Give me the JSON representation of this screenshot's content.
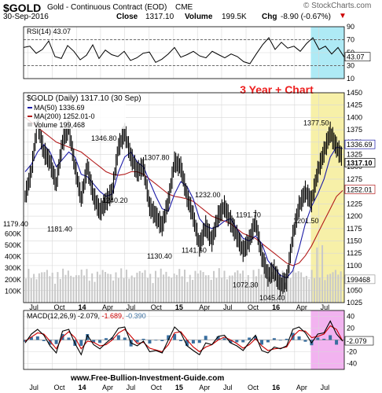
{
  "header": {
    "symbol": "$GOLD",
    "description": "Gold - Continuous Contract (EOD)",
    "exchange": "CME",
    "brand": "© StockCharts.com",
    "date": "30-Sep-2016",
    "close_label": "Close",
    "close_value": "1317.10",
    "volume_label": "Volume",
    "volume_value": "199.5K",
    "chg_label": "Chg",
    "chg_value": "-8.90 (-0.67%)",
    "chg_marker": "▼"
  },
  "annotation": "3 Year + Chart",
  "footer_url": "www.Free-Bullion-Investment-Guide.com",
  "colors": {
    "price": "#000000",
    "ma50": "#1a1aa6",
    "ma200": "#b31b1b",
    "volume": "#c8c8c8",
    "rsi_shade": "#aeeaf5",
    "price_shade": "#f7f0a8",
    "macd_shade": "#f2b3f0",
    "annotation": "#ee2020",
    "macd_line": "#000000",
    "signal_line": "#cc0000",
    "histogram": "#3a6f9f"
  },
  "chart_data": [
    {
      "type": "line",
      "title": "RSI(14) 43.07",
      "ylim": [
        10,
        90
      ],
      "y_ticks": [
        90,
        70,
        50,
        30,
        10
      ],
      "reference_lines": [
        70,
        30
      ],
      "last_value_label": "43.07",
      "shaded_period": [
        "2016-06-01",
        "2016-09-30"
      ],
      "series": [
        {
          "name": "RSI(14)",
          "values": [
            58,
            60,
            49,
            55,
            68,
            44,
            41,
            61,
            52,
            39,
            46,
            62,
            41,
            54,
            47,
            44,
            52,
            38,
            42,
            49,
            51,
            35,
            40,
            48,
            58,
            43,
            47,
            52,
            45,
            42,
            52,
            47,
            42,
            48,
            44,
            36,
            33,
            48,
            62,
            73,
            55,
            66,
            57,
            60,
            52,
            64,
            73,
            55,
            60,
            48,
            58,
            43
          ]
        }
      ]
    },
    {
      "type": "line",
      "title": "$GOLD (Daily) 1317.10 (30 Sep)",
      "ylim": [
        1025,
        1450
      ],
      "y_ticks": [
        1450,
        1425,
        1400,
        1375,
        1350,
        1325,
        1300,
        1275,
        1250,
        1225,
        1200,
        1175,
        1150,
        1125,
        1100,
        1075,
        1050,
        1025
      ],
      "x_labels": [
        "Jul",
        "Oct",
        "14",
        "Apr",
        "Jul",
        "Oct",
        "15",
        "Apr",
        "Jul",
        "Oct",
        "16",
        "Apr",
        "Jul"
      ],
      "shaded_period": [
        "2016-06-01",
        "2016-09-30"
      ],
      "legend": [
        "MA(50) 1336.69",
        "MA(200) 1252.01-0",
        "Volume 199,468"
      ],
      "price_labels": [
        "1179.40",
        "1181.40",
        "1346.80",
        "1240.20",
        "1307.80",
        "1130.40",
        "1232.00",
        "1141.60",
        "1191.70",
        "1072.30",
        "1045.40",
        "1201.50",
        "1377.50"
      ],
      "price_label_values": [
        1179.4,
        1181.4,
        1346.8,
        1240.2,
        1307.8,
        1130.4,
        1232.0,
        1141.6,
        1191.7,
        1072.3,
        1045.4,
        1201.5,
        1377.5
      ],
      "side_labels": [
        "1336.69",
        "1317.10",
        "1252.01"
      ],
      "volume_ticks": [
        "600K",
        "500K",
        "400K",
        "300K",
        "200K",
        "100K"
      ],
      "volume_last_label": "199468",
      "series": [
        {
          "name": "$GOLD",
          "values": [
            1240,
            1290,
            1390,
            1330,
            1310,
            1265,
            1350,
            1380,
            1300,
            1235,
            1300,
            1240,
            1210,
            1230,
            1250,
            1340,
            1370,
            1320,
            1290,
            1300,
            1220,
            1200,
            1180,
            1230,
            1310,
            1300,
            1240,
            1200,
            1140,
            1180,
            1150,
            1200,
            1220,
            1190,
            1160,
            1130,
            1150,
            1190,
            1120,
            1080,
            1090,
            1060,
            1070,
            1160,
            1220,
            1250,
            1230,
            1290,
            1330,
            1370,
            1340,
            1317
          ]
        },
        {
          "name": "MA(50)",
          "values": [
            1290,
            1305,
            1330,
            1345,
            1330,
            1300,
            1315,
            1330,
            1320,
            1285,
            1280,
            1265,
            1250,
            1240,
            1245,
            1290,
            1320,
            1330,
            1310,
            1300,
            1270,
            1240,
            1215,
            1210,
            1245,
            1270,
            1260,
            1235,
            1195,
            1180,
            1175,
            1180,
            1190,
            1195,
            1175,
            1155,
            1150,
            1160,
            1145,
            1110,
            1095,
            1080,
            1075,
            1090,
            1135,
            1185,
            1220,
            1245,
            1275,
            1320,
            1340,
            1337
          ]
        },
        {
          "name": "MA(200)",
          "values": [
            1400,
            1390,
            1380,
            1370,
            1360,
            1350,
            1345,
            1340,
            1335,
            1330,
            1320,
            1310,
            1300,
            1290,
            1285,
            1283,
            1285,
            1290,
            1290,
            1285,
            1275,
            1265,
            1255,
            1245,
            1240,
            1238,
            1235,
            1230,
            1220,
            1210,
            1200,
            1195,
            1190,
            1185,
            1175,
            1165,
            1160,
            1155,
            1145,
            1135,
            1125,
            1115,
            1105,
            1100,
            1105,
            1120,
            1140,
            1165,
            1190,
            1215,
            1240,
            1252
          ]
        }
      ]
    },
    {
      "type": "line",
      "title": "MACD(12,26,9) -2.079, -1.689, -0.390",
      "ylim": [
        -50,
        50
      ],
      "y_ticks": [
        40,
        20,
        -20,
        -40
      ],
      "x_labels": [
        "Jul",
        "Oct",
        "14",
        "Apr",
        "Jul",
        "Oct",
        "15",
        "Apr",
        "Jul",
        "Oct",
        "16",
        "Apr",
        "Jul"
      ],
      "last_value_label": "-2.079",
      "shaded_period": [
        "2016-06-01",
        "2016-09-30"
      ],
      "series": [
        {
          "name": "MACD(12,26,9)",
          "values": [
            -5,
            10,
            18,
            8,
            -10,
            -22,
            15,
            18,
            -6,
            -25,
            8,
            -8,
            -15,
            -5,
            4,
            20,
            22,
            -5,
            -10,
            -2,
            -20,
            -18,
            -22,
            0,
            22,
            12,
            -10,
            -18,
            -25,
            -5,
            -8,
            6,
            8,
            -5,
            -10,
            -18,
            -4,
            8,
            -18,
            -22,
            -12,
            -15,
            -10,
            18,
            22,
            12,
            -5,
            10,
            12,
            32,
            10,
            -2
          ]
        },
        {
          "name": "Signal",
          "values": [
            -2,
            5,
            12,
            10,
            -2,
            -15,
            5,
            14,
            4,
            -15,
            -2,
            -4,
            -10,
            -8,
            0,
            12,
            18,
            6,
            -6,
            -4,
            -14,
            -17,
            -20,
            -8,
            12,
            14,
            0,
            -12,
            -20,
            -12,
            -8,
            0,
            5,
            0,
            -6,
            -14,
            -8,
            2,
            -10,
            -18,
            -15,
            -14,
            -12,
            6,
            16,
            15,
            4,
            6,
            10,
            24,
            18,
            -2
          ]
        },
        {
          "name": "Histogram",
          "values": [
            -3,
            5,
            6,
            -2,
            -8,
            -7,
            10,
            4,
            -10,
            -10,
            10,
            -4,
            -5,
            3,
            4,
            8,
            4,
            -11,
            -4,
            2,
            -6,
            -1,
            -2,
            8,
            10,
            -2,
            -10,
            -6,
            -5,
            7,
            0,
            6,
            3,
            -5,
            -4,
            -4,
            4,
            6,
            -8,
            -4,
            3,
            -1,
            2,
            12,
            6,
            -3,
            -9,
            4,
            2,
            8,
            -8,
            -0.4
          ]
        }
      ]
    }
  ]
}
